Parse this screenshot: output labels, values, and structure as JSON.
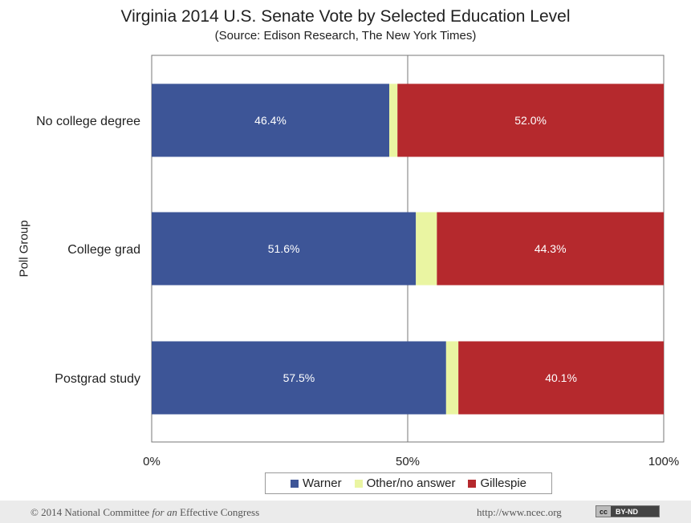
{
  "chart_data": {
    "type": "bar",
    "orientation": "horizontal",
    "stacked": true,
    "title": "Virginia 2014 U.S. Senate Vote by Selected Education Level",
    "subtitle": "(Source: Edison Research, The New York Times)",
    "ylabel": "Poll Group",
    "xlabel": "",
    "categories": [
      "No college degree",
      "College grad",
      "Postgrad study"
    ],
    "series": [
      {
        "name": "Warner",
        "color": "#3d5597",
        "values": [
          46.4,
          51.6,
          57.5
        ],
        "labels": [
          "46.4%",
          "51.6%",
          "57.5%"
        ]
      },
      {
        "name": "Other/no answer",
        "color": "#eaf5a2",
        "values": [
          1.6,
          4.1,
          2.4
        ]
      },
      {
        "name": "Gillespie",
        "color": "#b5292d",
        "values": [
          52.0,
          44.3,
          40.1
        ],
        "labels": [
          "52.0%",
          "44.3%",
          "40.1%"
        ]
      }
    ],
    "xlim": [
      0,
      100
    ],
    "xticks": [
      0,
      50,
      100
    ],
    "xtick_labels": [
      "0%",
      "50%",
      "100%"
    ],
    "legend_position": "bottom",
    "grid": "vertical line at 50%"
  },
  "footer": {
    "copyright_prefix": "© 2014 National Committee ",
    "copyright_italic": "for an",
    "copyright_suffix": " Effective Congress",
    "url": "http://www.ncec.org",
    "license_left": "cc",
    "license_right": "BY-ND"
  }
}
